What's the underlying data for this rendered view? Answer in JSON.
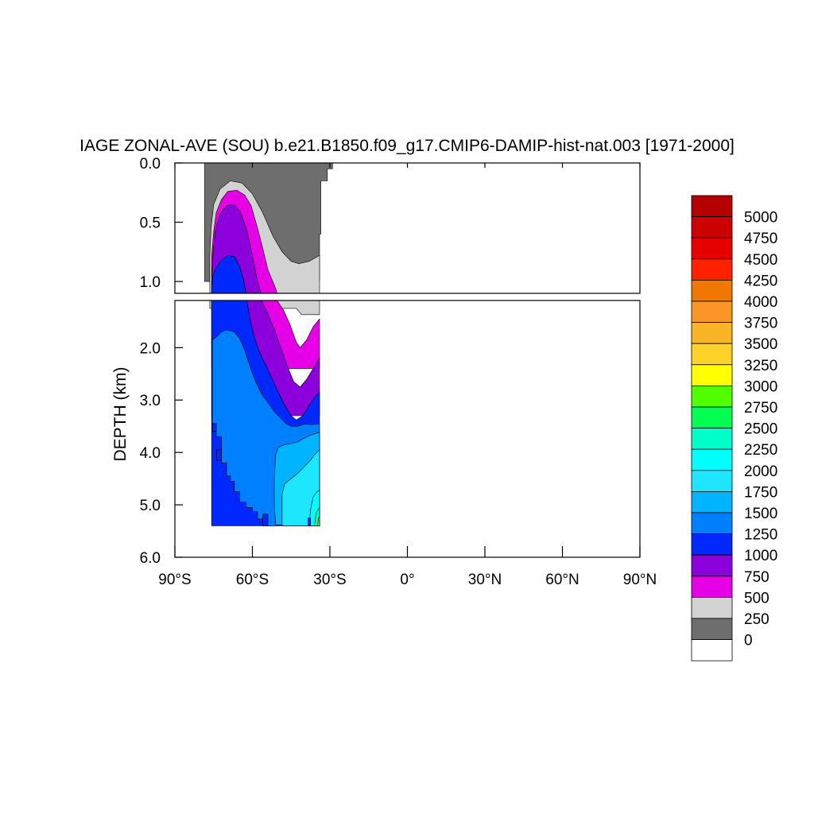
{
  "chart_data": {
    "type": "heatmap",
    "title": "IAGE ZONAL-AVE (SOU) b.e21.B1850.f09_g17.CMIP6-DAMIP-hist-nat.003 [1971-2000]",
    "xlabel": "",
    "ylabel": "DEPTH (km)",
    "xlim": [
      -90,
      90
    ],
    "ylim_upper_panel": [
      0,
      1.1
    ],
    "ylim_lower_panel": [
      1.1,
      6.0
    ],
    "x_ticks": [
      {
        "value": -90,
        "label": "90°S"
      },
      {
        "value": -60,
        "label": "60°S"
      },
      {
        "value": -30,
        "label": "30°S"
      },
      {
        "value": 0,
        "label": "0°"
      },
      {
        "value": 30,
        "label": "30°N"
      },
      {
        "value": 60,
        "label": "60°N"
      },
      {
        "value": 90,
        "label": "90°N"
      }
    ],
    "y_ticks_upper": [
      {
        "value": 0.0,
        "label": "0.0"
      },
      {
        "value": 0.5,
        "label": "0.5"
      },
      {
        "value": 1.0,
        "label": "1.0"
      }
    ],
    "y_ticks_lower": [
      {
        "value": 2.0,
        "label": "2.0"
      },
      {
        "value": 3.0,
        "label": "3.0"
      },
      {
        "value": 4.0,
        "label": "4.0"
      },
      {
        "value": 5.0,
        "label": "5.0"
      },
      {
        "value": 6.0,
        "label": "6.0"
      }
    ],
    "colorbar": {
      "labels": [
        "5000",
        "4750",
        "4500",
        "4250",
        "4000",
        "3750",
        "3500",
        "3250",
        "3000",
        "2750",
        "2500",
        "2250",
        "2000",
        "1750",
        "1500",
        "1250",
        "1000",
        "750",
        "500",
        "250",
        "0"
      ],
      "colors": [
        "#b40000",
        "#cc0000",
        "#e60000",
        "#ff2000",
        "#f07800",
        "#fa9628",
        "#fab428",
        "#ffd228",
        "#ffff00",
        "#50ff00",
        "#00ff50",
        "#00ffc8",
        "#00ffff",
        "#1ee6ff",
        "#00b4ff",
        "#0080ff",
        "#0028ff",
        "#8c00dc",
        "#e600e6",
        "#d2d2d2",
        "#6e6e6e",
        "#ffffff"
      ]
    },
    "contour_levels": [
      {
        "label": "0",
        "color": "#6e6e6e",
        "points": [
          [
            -78.5,
            0.0
          ],
          [
            -29.0,
            0.0
          ],
          [
            -29.0,
            0.05
          ],
          [
            -31.0,
            0.05
          ],
          [
            -31.0,
            0.15
          ],
          [
            -33.5,
            0.15
          ],
          [
            -33.5,
            0.6
          ],
          [
            -34.0,
            0.6
          ],
          [
            -34.0,
            1.0
          ],
          [
            -78.5,
            1.0
          ]
        ]
      },
      {
        "label": "250",
        "color": "#d2d2d2",
        "points": [
          [
            -76.5,
            0.79
          ],
          [
            -76.0,
            0.55
          ],
          [
            -75.0,
            0.35
          ],
          [
            -72.5,
            0.22
          ],
          [
            -68.5,
            0.15
          ],
          [
            -64.0,
            0.17
          ],
          [
            -60.0,
            0.26
          ],
          [
            -56.0,
            0.42
          ],
          [
            -52.0,
            0.62
          ],
          [
            -48.5,
            0.75
          ],
          [
            -45.0,
            0.83
          ],
          [
            -42.0,
            0.85
          ],
          [
            -38.0,
            0.83
          ],
          [
            -34.0,
            0.78
          ],
          [
            -34.0,
            1.37
          ],
          [
            -41.0,
            1.37
          ],
          [
            -43.0,
            1.25
          ],
          [
            -76.5,
            1.25
          ]
        ]
      },
      {
        "label": "500",
        "color": "#e600e6",
        "points": [
          [
            -75.8,
            0.79
          ],
          [
            -75.0,
            0.58
          ],
          [
            -74.0,
            0.42
          ],
          [
            -72.0,
            0.31
          ],
          [
            -69.5,
            0.24
          ],
          [
            -66.0,
            0.23
          ],
          [
            -63.0,
            0.27
          ],
          [
            -60.5,
            0.36
          ],
          [
            -58.0,
            0.55
          ],
          [
            -56.0,
            0.72
          ],
          [
            -54.0,
            0.9
          ],
          [
            -51.0,
            1.06
          ],
          [
            -48.0,
            1.28
          ],
          [
            -45.5,
            1.55
          ],
          [
            -43.0,
            1.9
          ],
          [
            -41.5,
            2.0
          ],
          [
            -39.0,
            1.85
          ],
          [
            -36.5,
            1.6
          ],
          [
            -34.0,
            1.45
          ],
          [
            -34.0,
            2.4
          ],
          [
            -75.8,
            2.4
          ]
        ]
      },
      {
        "label": "750",
        "color": "#8c00dc",
        "points": [
          [
            -75.8,
            1.0
          ],
          [
            -75.2,
            0.75
          ],
          [
            -74.2,
            0.55
          ],
          [
            -72.5,
            0.43
          ],
          [
            -70.0,
            0.36
          ],
          [
            -67.0,
            0.35
          ],
          [
            -64.5,
            0.42
          ],
          [
            -62.0,
            0.58
          ],
          [
            -60.0,
            0.78
          ],
          [
            -58.0,
            1.0
          ],
          [
            -56.0,
            1.15
          ],
          [
            -54.0,
            1.35
          ],
          [
            -51.5,
            1.65
          ],
          [
            -49.0,
            2.0
          ],
          [
            -46.5,
            2.35
          ],
          [
            -44.0,
            2.65
          ],
          [
            -41.5,
            2.75
          ],
          [
            -39.0,
            2.6
          ],
          [
            -36.5,
            2.4
          ],
          [
            -34.0,
            2.2
          ],
          [
            -34.0,
            3.3
          ],
          [
            -75.8,
            3.3
          ]
        ]
      },
      {
        "label": "1000",
        "color": "#0028ff",
        "points": [
          [
            -75.8,
            1.05
          ],
          [
            -75.3,
            0.95
          ],
          [
            -74.0,
            0.88
          ],
          [
            -72.0,
            0.82
          ],
          [
            -69.5,
            0.78
          ],
          [
            -67.0,
            0.79
          ],
          [
            -65.0,
            0.87
          ],
          [
            -63.5,
            0.98
          ],
          [
            -62.0,
            1.15
          ],
          [
            -60.5,
            1.55
          ],
          [
            -59.0,
            1.85
          ],
          [
            -57.0,
            2.12
          ],
          [
            -55.0,
            2.32
          ],
          [
            -52.5,
            2.58
          ],
          [
            -50.0,
            2.85
          ],
          [
            -47.5,
            3.1
          ],
          [
            -45.0,
            3.3
          ],
          [
            -43.0,
            3.38
          ],
          [
            -40.5,
            3.3
          ],
          [
            -38.0,
            3.1
          ],
          [
            -36.0,
            2.95
          ],
          [
            -34.0,
            2.85
          ],
          [
            -34.0,
            5.4
          ],
          [
            -75.8,
            5.4
          ]
        ]
      },
      {
        "label": "1250",
        "color": "#0080ff",
        "points": [
          [
            -75.5,
            1.85
          ],
          [
            -74.0,
            1.8
          ],
          [
            -72.0,
            1.7
          ],
          [
            -70.0,
            1.66
          ],
          [
            -67.0,
            1.7
          ],
          [
            -65.0,
            1.82
          ],
          [
            -63.0,
            2.05
          ],
          [
            -61.0,
            2.35
          ],
          [
            -59.0,
            2.62
          ],
          [
            -56.5,
            2.88
          ],
          [
            -54.0,
            3.05
          ],
          [
            -51.5,
            3.22
          ],
          [
            -49.0,
            3.35
          ],
          [
            -47.0,
            3.45
          ],
          [
            -45.0,
            3.5
          ],
          [
            -42.5,
            3.5
          ],
          [
            -40.0,
            3.46
          ],
          [
            -37.0,
            3.47
          ],
          [
            -34.0,
            3.45
          ],
          [
            -34.0,
            5.4
          ],
          [
            -46.0,
            5.4
          ],
          [
            -46.0,
            5.28
          ],
          [
            -50.0,
            5.28
          ],
          [
            -50.0,
            5.4
          ],
          [
            -56.0,
            5.4
          ],
          [
            -56.0,
            5.27
          ],
          [
            -58.0,
            5.27
          ],
          [
            -58.0,
            5.13
          ],
          [
            -60.0,
            5.13
          ],
          [
            -60.0,
            5.05
          ],
          [
            -62.5,
            5.05
          ],
          [
            -62.5,
            4.95
          ],
          [
            -65.0,
            4.95
          ],
          [
            -65.0,
            4.75
          ],
          [
            -67.0,
            4.75
          ],
          [
            -67.0,
            4.55
          ],
          [
            -68.5,
            4.55
          ],
          [
            -68.5,
            4.45
          ],
          [
            -70.0,
            4.45
          ],
          [
            -70.0,
            4.2
          ],
          [
            -72.0,
            4.2
          ],
          [
            -72.0,
            3.7
          ],
          [
            -74.0,
            3.7
          ],
          [
            -74.0,
            3.45
          ],
          [
            -75.5,
            3.45
          ]
        ]
      },
      {
        "label": "1500",
        "color": "#00b4ff",
        "points": [
          [
            -51.0,
            5.38
          ],
          [
            -51.5,
            5.0
          ],
          [
            -51.5,
            4.5
          ],
          [
            -51.0,
            4.05
          ],
          [
            -50.0,
            3.9
          ],
          [
            -47.5,
            3.85
          ],
          [
            -45.0,
            3.83
          ],
          [
            -42.5,
            3.8
          ],
          [
            -40.0,
            3.73
          ],
          [
            -37.5,
            3.67
          ],
          [
            -35.0,
            3.63
          ],
          [
            -34.0,
            3.62
          ],
          [
            -34.0,
            5.4
          ]
        ]
      },
      {
        "label": "1750",
        "color": "#1ee6ff",
        "points": [
          [
            -48.5,
            5.4
          ],
          [
            -48.5,
            4.8
          ],
          [
            -47.5,
            4.6
          ],
          [
            -45.0,
            4.5
          ],
          [
            -42.5,
            4.4
          ],
          [
            -40.0,
            4.28
          ],
          [
            -37.5,
            4.15
          ],
          [
            -35.5,
            4.02
          ],
          [
            -34.0,
            3.95
          ],
          [
            -34.0,
            5.4
          ]
        ]
      },
      {
        "label": "2000",
        "color": "#00ffff",
        "points": [
          [
            -38.0,
            5.4
          ],
          [
            -37.5,
            5.1
          ],
          [
            -36.5,
            4.85
          ],
          [
            -35.0,
            4.75
          ],
          [
            -34.0,
            4.72
          ],
          [
            -34.0,
            5.4
          ]
        ]
      },
      {
        "label": "2250",
        "color": "#00ffc8",
        "points": [
          [
            -36.0,
            5.4
          ],
          [
            -35.3,
            5.15
          ],
          [
            -34.0,
            5.05
          ],
          [
            -34.0,
            5.4
          ]
        ]
      },
      {
        "label": "2750",
        "color": "#50ff00",
        "points": [
          [
            -34.8,
            5.4
          ],
          [
            -34.4,
            5.25
          ],
          [
            -34.0,
            5.22
          ],
          [
            -34.0,
            5.4
          ]
        ]
      }
    ],
    "deep_blue_patches": [
      [
        [
          -75.5,
          3.45
        ],
        [
          -74.0,
          3.45
        ],
        [
          -74.0,
          3.6
        ],
        [
          -75.5,
          3.6
        ]
      ],
      [
        [
          -73.8,
          3.95
        ],
        [
          -72.0,
          3.95
        ],
        [
          -72.0,
          4.15
        ],
        [
          -73.8,
          4.15
        ]
      ],
      [
        [
          -56.0,
          5.18
        ],
        [
          -54.0,
          5.18
        ],
        [
          -54.0,
          5.4
        ],
        [
          -56.0,
          5.4
        ]
      ],
      [
        [
          -38.5,
          5.25
        ],
        [
          -37.5,
          5.25
        ],
        [
          -37.5,
          5.4
        ],
        [
          -38.5,
          5.4
        ]
      ]
    ]
  }
}
